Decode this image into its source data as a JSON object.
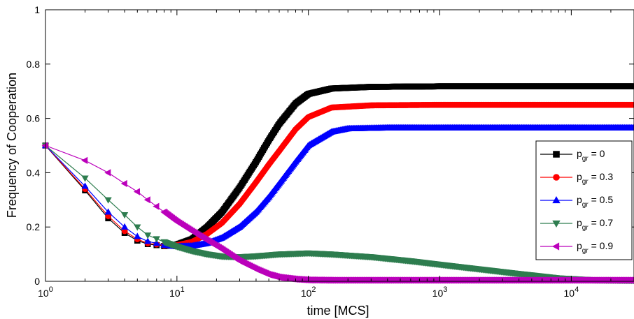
{
  "chart_data": {
    "type": "line",
    "title": "",
    "xlabel": "time [MCS]",
    "ylabel": "Frequency of Cooperation",
    "xscale": "log",
    "xlim": [
      1,
      30000
    ],
    "ylim": [
      0,
      1
    ],
    "x_ticks": [
      {
        "value": 1,
        "base": "10",
        "exp": "0"
      },
      {
        "value": 10,
        "base": "10",
        "exp": "1"
      },
      {
        "value": 100,
        "base": "10",
        "exp": "2"
      },
      {
        "value": 1000,
        "base": "10",
        "exp": "3"
      },
      {
        "value": 10000,
        "base": "10",
        "exp": "4"
      }
    ],
    "y_ticks": [
      {
        "value": 0,
        "label": "0"
      },
      {
        "value": 0.2,
        "label": "0.2"
      },
      {
        "value": 0.4,
        "label": "0.4"
      },
      {
        "value": 0.6,
        "label": "0.6"
      },
      {
        "value": 0.8,
        "label": "0.8"
      },
      {
        "value": 1,
        "label": "1"
      }
    ],
    "grid": false,
    "legend_position": "right",
    "series": [
      {
        "name_base": "p",
        "name_sub": "gr",
        "name_value": " = 0",
        "color": "#000000",
        "marker": "square",
        "points": [
          [
            1,
            0.5
          ],
          [
            2,
            0.335
          ],
          [
            3,
            0.232
          ],
          [
            4,
            0.178
          ],
          [
            5,
            0.15
          ],
          [
            6,
            0.137
          ],
          [
            8,
            0.13
          ],
          [
            10,
            0.135
          ],
          [
            13,
            0.155
          ],
          [
            17,
            0.2
          ],
          [
            22,
            0.255
          ],
          [
            30,
            0.345
          ],
          [
            40,
            0.44
          ],
          [
            50,
            0.52
          ],
          [
            60,
            0.58
          ],
          [
            80,
            0.655
          ],
          [
            100,
            0.69
          ],
          [
            150,
            0.71
          ],
          [
            300,
            0.716
          ],
          [
            1000,
            0.718
          ],
          [
            30000,
            0.718
          ]
        ]
      },
      {
        "name_base": "p",
        "name_sub": "gr",
        "name_value": " = 0.3",
        "color": "#ff0000",
        "marker": "circle",
        "points": [
          [
            1,
            0.5
          ],
          [
            2,
            0.34
          ],
          [
            3,
            0.24
          ],
          [
            4,
            0.185
          ],
          [
            5,
            0.155
          ],
          [
            6,
            0.14
          ],
          [
            8,
            0.132
          ],
          [
            10,
            0.133
          ],
          [
            13,
            0.145
          ],
          [
            17,
            0.175
          ],
          [
            22,
            0.215
          ],
          [
            30,
            0.285
          ],
          [
            40,
            0.365
          ],
          [
            50,
            0.43
          ],
          [
            60,
            0.48
          ],
          [
            80,
            0.56
          ],
          [
            100,
            0.605
          ],
          [
            150,
            0.64
          ],
          [
            300,
            0.648
          ],
          [
            1000,
            0.65
          ],
          [
            30000,
            0.65
          ]
        ]
      },
      {
        "name_base": "p",
        "name_sub": "gr",
        "name_value": " = 0.5",
        "color": "#0000ff",
        "marker": "triangle-up",
        "points": [
          [
            1,
            0.5
          ],
          [
            2,
            0.35
          ],
          [
            3,
            0.255
          ],
          [
            4,
            0.2
          ],
          [
            5,
            0.165
          ],
          [
            6,
            0.147
          ],
          [
            8,
            0.134
          ],
          [
            10,
            0.128
          ],
          [
            13,
            0.13
          ],
          [
            17,
            0.14
          ],
          [
            22,
            0.16
          ],
          [
            30,
            0.2
          ],
          [
            40,
            0.255
          ],
          [
            50,
            0.31
          ],
          [
            60,
            0.36
          ],
          [
            80,
            0.44
          ],
          [
            100,
            0.5
          ],
          [
            150,
            0.55
          ],
          [
            200,
            0.562
          ],
          [
            400,
            0.565
          ],
          [
            30000,
            0.565
          ]
        ]
      },
      {
        "name_base": "p",
        "name_sub": "gr",
        "name_value": " = 0.7",
        "color": "#2e7d4f",
        "marker": "triangle-down",
        "points": [
          [
            1,
            0.5
          ],
          [
            2,
            0.38
          ],
          [
            3,
            0.3
          ],
          [
            4,
            0.245
          ],
          [
            5,
            0.2
          ],
          [
            6,
            0.17
          ],
          [
            8,
            0.145
          ],
          [
            10,
            0.128
          ],
          [
            13,
            0.112
          ],
          [
            17,
            0.1
          ],
          [
            22,
            0.092
          ],
          [
            30,
            0.09
          ],
          [
            40,
            0.093
          ],
          [
            60,
            0.1
          ],
          [
            100,
            0.104
          ],
          [
            150,
            0.1
          ],
          [
            300,
            0.09
          ],
          [
            600,
            0.075
          ],
          [
            1000,
            0.062
          ],
          [
            2000,
            0.045
          ],
          [
            4000,
            0.028
          ],
          [
            8000,
            0.012
          ],
          [
            15000,
            0.005
          ],
          [
            30000,
            0.003
          ]
        ]
      },
      {
        "name_base": "p",
        "name_sub": "gr",
        "name_value": " = 0.9",
        "color": "#bb00bb",
        "marker": "triangle-left",
        "points": [
          [
            1,
            0.5
          ],
          [
            2,
            0.445
          ],
          [
            3,
            0.4
          ],
          [
            4,
            0.36
          ],
          [
            5,
            0.33
          ],
          [
            6,
            0.3
          ],
          [
            8,
            0.255
          ],
          [
            10,
            0.22
          ],
          [
            13,
            0.185
          ],
          [
            17,
            0.15
          ],
          [
            22,
            0.118
          ],
          [
            30,
            0.075
          ],
          [
            40,
            0.045
          ],
          [
            50,
            0.025
          ],
          [
            60,
            0.015
          ],
          [
            80,
            0.008
          ],
          [
            100,
            0.005
          ],
          [
            150,
            0.004
          ],
          [
            30000,
            0.004
          ]
        ]
      }
    ]
  }
}
